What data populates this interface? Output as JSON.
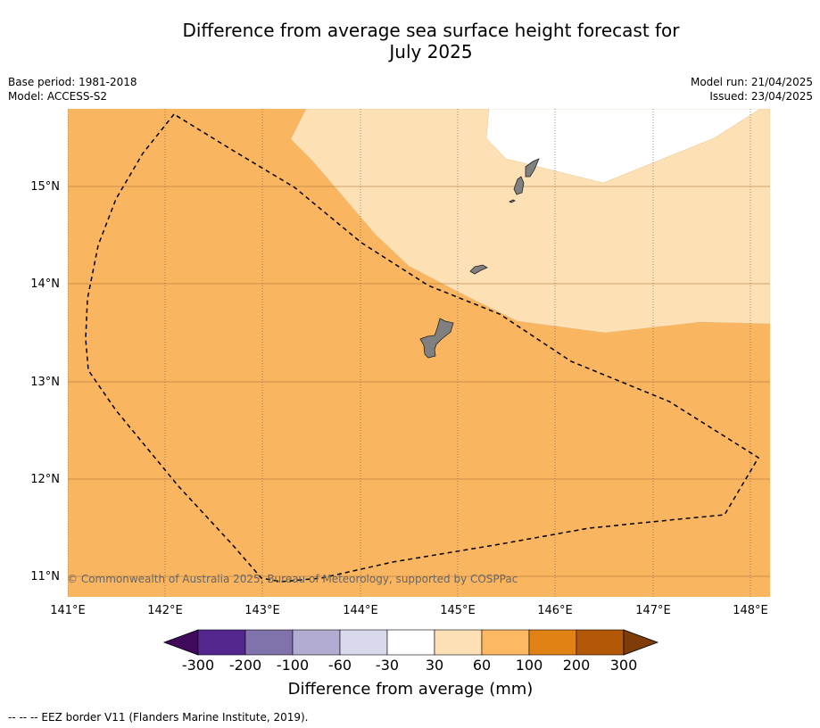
{
  "title_line1": "Difference from average sea surface height forecast for",
  "title_line2": "July 2025",
  "meta": {
    "base_period": "Base period: 1981-2018",
    "model": "Model: ACCESS-S2",
    "model_run": "Model run: 21/04/2025",
    "issued": "Issued: 23/04/2025"
  },
  "map": {
    "lon_labels": [
      "141°E",
      "142°E",
      "143°E",
      "144°E",
      "145°E",
      "146°E",
      "147°E",
      "148°E"
    ],
    "lat_labels": [
      "15°N",
      "14°N",
      "13°N",
      "12°N",
      "11°N"
    ],
    "copyright": "© Commonwealth of Australia 2025, Bureau of Meteorology, supported by COSPPac"
  },
  "colorbar": {
    "ticks": [
      "-300",
      "-200",
      "-100",
      "-60",
      "-30",
      "30",
      "60",
      "100",
      "200",
      "300"
    ],
    "colors": [
      "#3f0a5a",
      "#54278f",
      "#8073ac",
      "#b2abd2",
      "#d8daeb",
      "#ffffff",
      "#fee0b6",
      "#fdb863",
      "#e08214",
      "#b35806",
      "#7f3b08"
    ],
    "label": "Difference from average (mm)"
  },
  "footnote": "--  --  -- EEZ border V11 (Flanders Marine Institute, 2019).",
  "colors": {
    "band_60_100": "#fab561",
    "band_30_60": "#fde0b4",
    "band_neutral": "#ffffff",
    "land": "#808080"
  }
}
